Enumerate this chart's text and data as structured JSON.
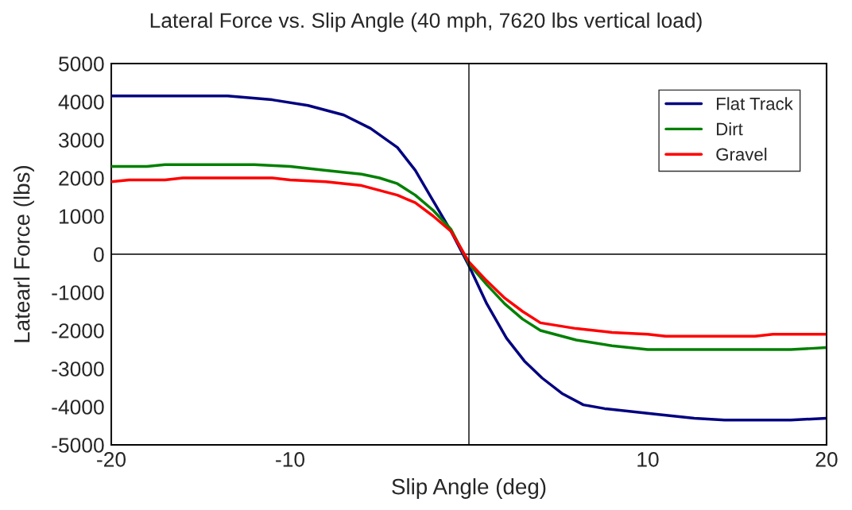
{
  "chart_data": {
    "type": "line",
    "title": "Lateral Force vs. Slip Angle (40 mph, 7620 lbs vertical load)",
    "xlabel": "Slip Angle (deg)",
    "ylabel": "Latearl Force (lbs)",
    "xlim": [
      -20,
      20
    ],
    "xticks": [
      -20,
      -10,
      10,
      20
    ],
    "ylim": [
      -5000,
      5000
    ],
    "yticks": [
      -5000,
      -4000,
      -3000,
      -2000,
      -1000,
      0,
      1000,
      2000,
      3000,
      4000,
      5000
    ],
    "grid": false,
    "ref_lines": [
      {
        "axis": "y",
        "value": 0
      }
    ],
    "legend": "top right",
    "marker": "none",
    "line_style": "solid",
    "series": [
      {
        "name": "Flat Track",
        "color": "#000080",
        "x": [
          -20,
          -13.5,
          -11,
          -9,
          -7,
          -5.5,
          -4,
          -3,
          -2,
          -1,
          0,
          1,
          2.1,
          3.1,
          4.1,
          5.2,
          6.4,
          7.6,
          10.5,
          12.6,
          14.3,
          18,
          20
        ],
        "values": [
          4150,
          4150,
          4050,
          3900,
          3650,
          3300,
          2800,
          2200,
          1400,
          600,
          -300,
          -1300,
          -2200,
          -2800,
          -3250,
          -3650,
          -3950,
          -4050,
          -4200,
          -4300,
          -4350,
          -4350,
          -4300
        ]
      },
      {
        "name": "Dirt",
        "color": "#008000",
        "x": [
          -20,
          -18,
          -17,
          -12,
          -10,
          -8,
          -6,
          -5,
          -4,
          -3,
          -2,
          -1,
          0,
          1,
          2,
          3,
          4,
          6,
          8,
          10,
          15,
          18,
          20
        ],
        "values": [
          2300,
          2300,
          2350,
          2350,
          2300,
          2200,
          2100,
          2000,
          1850,
          1550,
          1150,
          650,
          -250,
          -800,
          -1300,
          -1700,
          -2000,
          -2250,
          -2400,
          -2500,
          -2500,
          -2500,
          -2450
        ]
      },
      {
        "name": "Gravel",
        "color": "#ff0000",
        "x": [
          -20,
          -19,
          -17,
          -16,
          -11,
          -10,
          -8,
          -6,
          -4,
          -3,
          -2,
          -1,
          0,
          1,
          2,
          3,
          4,
          6,
          8,
          10,
          11,
          16,
          17,
          20
        ],
        "values": [
          1900,
          1950,
          1950,
          2000,
          2000,
          1950,
          1900,
          1800,
          1550,
          1350,
          1000,
          600,
          -200,
          -700,
          -1150,
          -1500,
          -1800,
          -1950,
          -2050,
          -2100,
          -2150,
          -2150,
          -2100,
          -2100
        ]
      }
    ]
  }
}
